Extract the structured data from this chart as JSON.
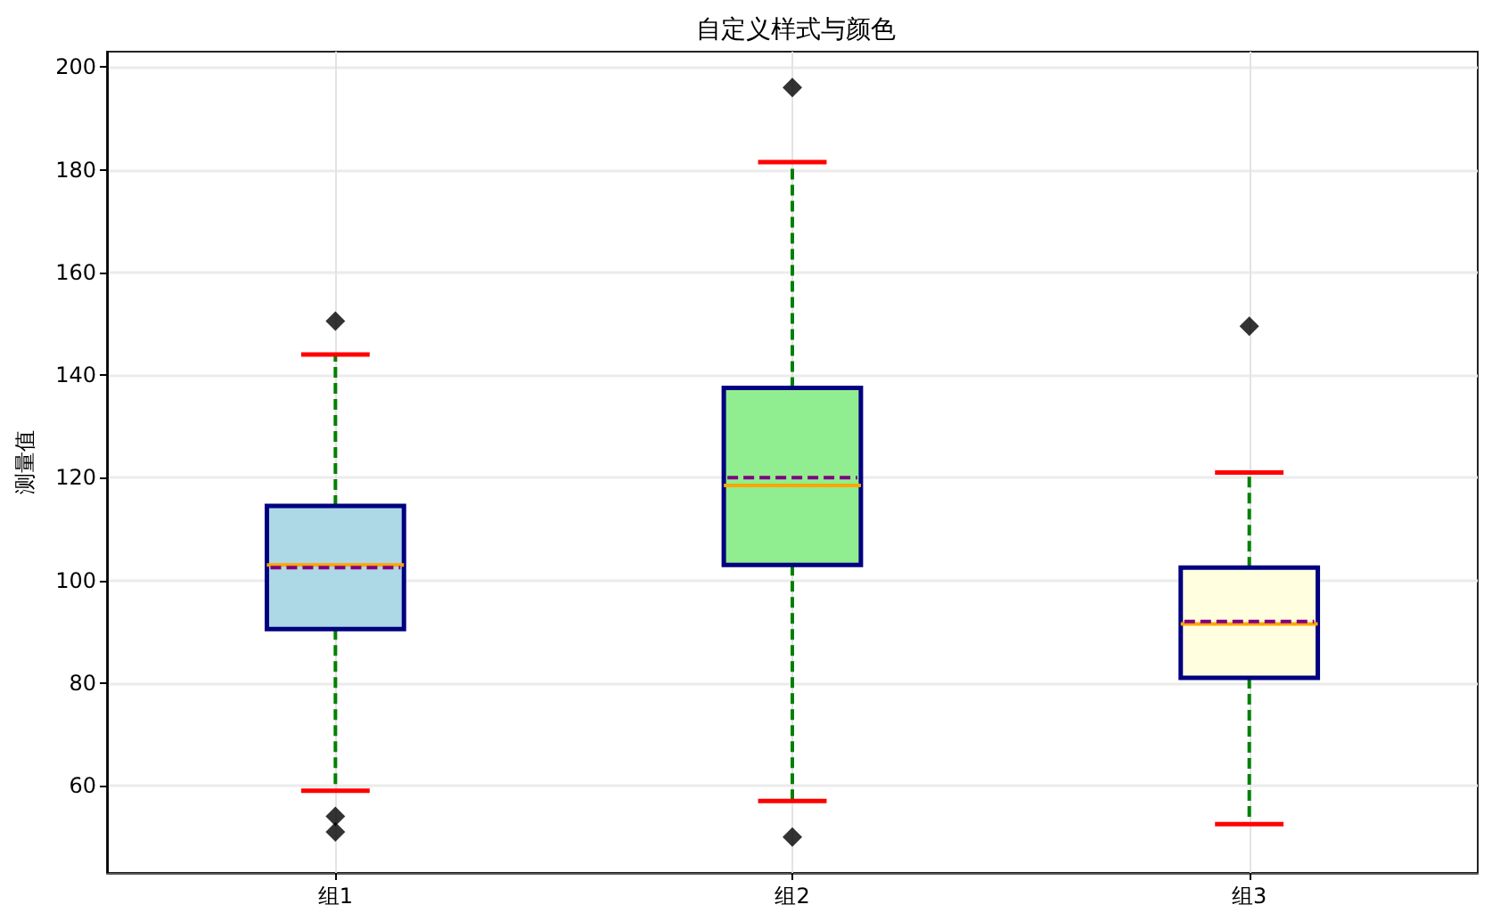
{
  "chart_data": {
    "type": "box",
    "title": "自定义样式与颜色",
    "ylabel": "测量值",
    "categories": [
      "组1",
      "组2",
      "组3"
    ],
    "boxes": [
      {
        "low": 59,
        "q1": 90.5,
        "median": 103,
        "q3": 114.5,
        "high": 144,
        "mean": 102.5,
        "outliers": [
          150.5,
          54,
          51
        ]
      },
      {
        "low": 57,
        "q1": 103,
        "median": 118.5,
        "q3": 137.5,
        "high": 181.5,
        "mean": 120,
        "outliers": [
          196,
          50
        ]
      },
      {
        "low": 52.5,
        "q1": 81,
        "median": 91.5,
        "q3": 102.5,
        "high": 121,
        "mean": 92,
        "outliers": [
          149.5
        ]
      }
    ],
    "colors": [
      "#add8e6",
      "#90ee90",
      "#ffffe0"
    ],
    "ylim": [
      43,
      203
    ],
    "yticks": [
      60,
      80,
      100,
      120,
      140,
      160,
      180,
      200
    ],
    "grid": true,
    "marker": "diamond"
  }
}
